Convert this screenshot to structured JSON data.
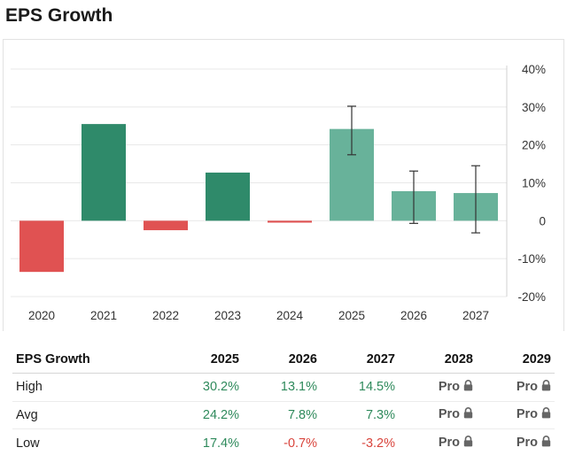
{
  "page": {
    "title": "EPS Growth"
  },
  "colors": {
    "actual_positive": "#2f8a6a",
    "actual_negative": "#e05252",
    "estimate_positive": "#68b29a",
    "estimate_negative": "#e57a78",
    "error_bar": "#333333",
    "grid": "#e8e8e8"
  },
  "chart_data": {
    "type": "bar",
    "title": "EPS Growth",
    "categories": [
      "2020",
      "2021",
      "2022",
      "2023",
      "2024",
      "2025",
      "2026",
      "2027"
    ],
    "values": [
      -13.5,
      25.5,
      -2.5,
      12.7,
      -0.5,
      24.2,
      7.8,
      7.3
    ],
    "estimate_categories": [
      "2025",
      "2026",
      "2027"
    ],
    "error_bars": [
      {
        "category": "2025",
        "low": 17.4,
        "high": 30.2
      },
      {
        "category": "2026",
        "low": -0.7,
        "high": 13.1
      },
      {
        "category": "2027",
        "low": -3.2,
        "high": 14.5
      }
    ],
    "y_ticks": [
      40,
      30,
      20,
      10,
      0,
      -10,
      -20
    ],
    "y_tick_labels": [
      "40%",
      "30%",
      "20%",
      "10%",
      "0",
      "-10%",
      "-20%"
    ],
    "ylim": [
      -20,
      40
    ],
    "y_axis_position": "right",
    "grid": true,
    "xlabel": "",
    "ylabel": ""
  },
  "table": {
    "header": [
      "EPS Growth",
      "2025",
      "2026",
      "2027",
      "2028",
      "2029"
    ],
    "rows": [
      {
        "label": "High",
        "values": [
          "30.2%",
          "13.1%",
          "14.5%"
        ],
        "locked": [
          "Pro",
          "Pro"
        ],
        "signs": [
          "pos",
          "pos",
          "pos"
        ]
      },
      {
        "label": "Avg",
        "values": [
          "24.2%",
          "7.8%",
          "7.3%"
        ],
        "locked": [
          "Pro",
          "Pro"
        ],
        "signs": [
          "pos",
          "pos",
          "pos"
        ]
      },
      {
        "label": "Low",
        "values": [
          "17.4%",
          "-0.7%",
          "-3.2%"
        ],
        "locked": [
          "Pro",
          "Pro"
        ],
        "signs": [
          "pos",
          "neg",
          "neg"
        ]
      }
    ],
    "lock_icon": "lock-icon"
  }
}
